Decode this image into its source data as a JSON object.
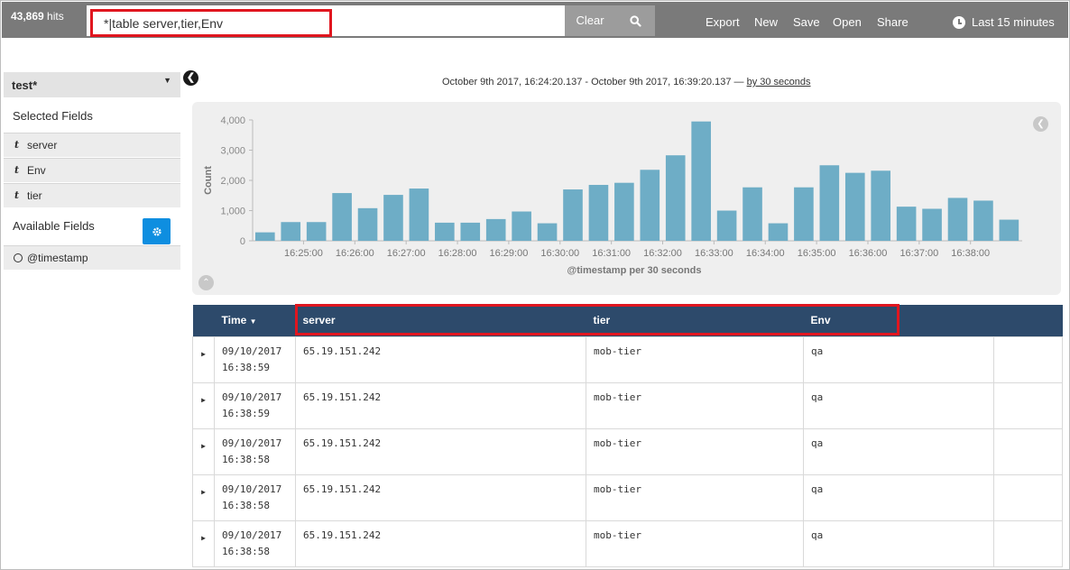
{
  "topbar": {
    "hits_count": "43,869",
    "hits_label": " hits",
    "query_value": "*|table server,tier,Env",
    "clear_label": "Clear",
    "nav": [
      "Export",
      "New",
      "Save",
      "Open",
      "Share"
    ],
    "time_label": "Last 15 minutes"
  },
  "sidebar": {
    "index_pattern": "test*",
    "selected_title": "Selected Fields",
    "selected_fields": [
      {
        "type": "t",
        "name": "server"
      },
      {
        "type": "t",
        "name": "Env"
      },
      {
        "type": "t",
        "name": "tier"
      }
    ],
    "available_title": "Available Fields",
    "available_fields": [
      {
        "type": "clock",
        "name": "@timestamp"
      }
    ]
  },
  "range": {
    "text": "October 9th 2017, 16:24:20.137 - October 9th 2017, 16:39:20.137 — ",
    "interval": "by 30 seconds"
  },
  "chart_data": {
    "type": "bar",
    "ylabel": "Count",
    "xlabel": "@timestamp per 30 seconds",
    "ylim": [
      0,
      4000
    ],
    "yticks": [
      "0",
      "1,000",
      "2,000",
      "3,000",
      "4,000"
    ],
    "xticks": [
      "16:25:00",
      "16:26:00",
      "16:27:00",
      "16:28:00",
      "16:29:00",
      "16:30:00",
      "16:31:00",
      "16:32:00",
      "16:33:00",
      "16:34:00",
      "16:35:00",
      "16:36:00",
      "16:37:00",
      "16:38:00"
    ],
    "values": [
      280,
      620,
      620,
      1580,
      1080,
      1520,
      1730,
      600,
      600,
      720,
      970,
      580,
      1700,
      1850,
      1920,
      2350,
      2830,
      3950,
      1000,
      1770,
      580,
      1770,
      2500,
      2250,
      2320,
      1130,
      1060,
      1420,
      1330,
      700
    ],
    "bar_color": "#6eadc6"
  },
  "table": {
    "columns": [
      "Time",
      "server",
      "tier",
      "Env"
    ],
    "rows": [
      {
        "date": "09/10/2017",
        "time": "16:38:59",
        "server": "65.19.151.242",
        "tier": "mob-tier",
        "env": "qa"
      },
      {
        "date": "09/10/2017",
        "time": "16:38:59",
        "server": "65.19.151.242",
        "tier": "mob-tier",
        "env": "qa"
      },
      {
        "date": "09/10/2017",
        "time": "16:38:58",
        "server": "65.19.151.242",
        "tier": "mob-tier",
        "env": "qa"
      },
      {
        "date": "09/10/2017",
        "time": "16:38:58",
        "server": "65.19.151.242",
        "tier": "mob-tier",
        "env": "qa"
      },
      {
        "date": "09/10/2017",
        "time": "16:38:58",
        "server": "65.19.151.242",
        "tier": "mob-tier",
        "env": "qa"
      }
    ]
  },
  "colors": {
    "header_bg": "#2d4a6b",
    "highlight": "#e0161f",
    "topbar_bg": "#7a7a7a"
  }
}
